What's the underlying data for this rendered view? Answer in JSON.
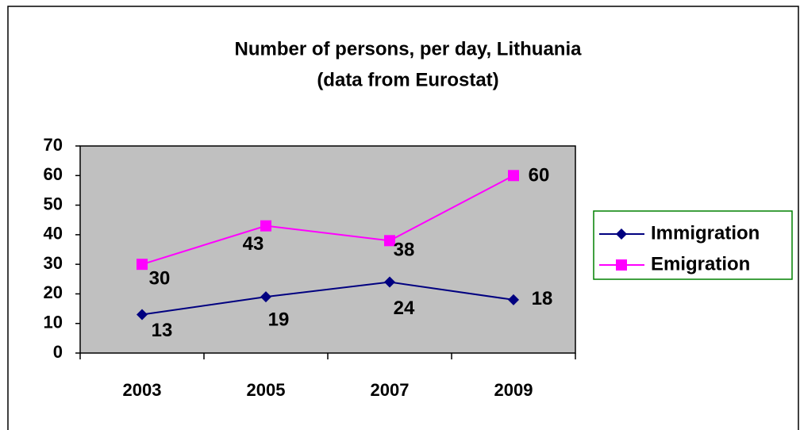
{
  "chart_data": {
    "type": "line",
    "title": "Number of persons, per day, Lithuania",
    "subtitle": "(data from Eurostat)",
    "categories": [
      "2003",
      "2005",
      "2007",
      "2009"
    ],
    "series": [
      {
        "name": "Immigration",
        "color": "#000080",
        "marker": "diamond",
        "values": [
          13,
          19,
          24,
          18
        ]
      },
      {
        "name": "Emigration",
        "color": "#ff00ff",
        "marker": "square",
        "values": [
          30,
          43,
          38,
          60
        ]
      }
    ],
    "ylim": [
      0,
      70
    ],
    "yticks": [
      0,
      10,
      20,
      30,
      40,
      50,
      60,
      70
    ],
    "plot_background": "#c0c0c0",
    "legend": "right"
  }
}
